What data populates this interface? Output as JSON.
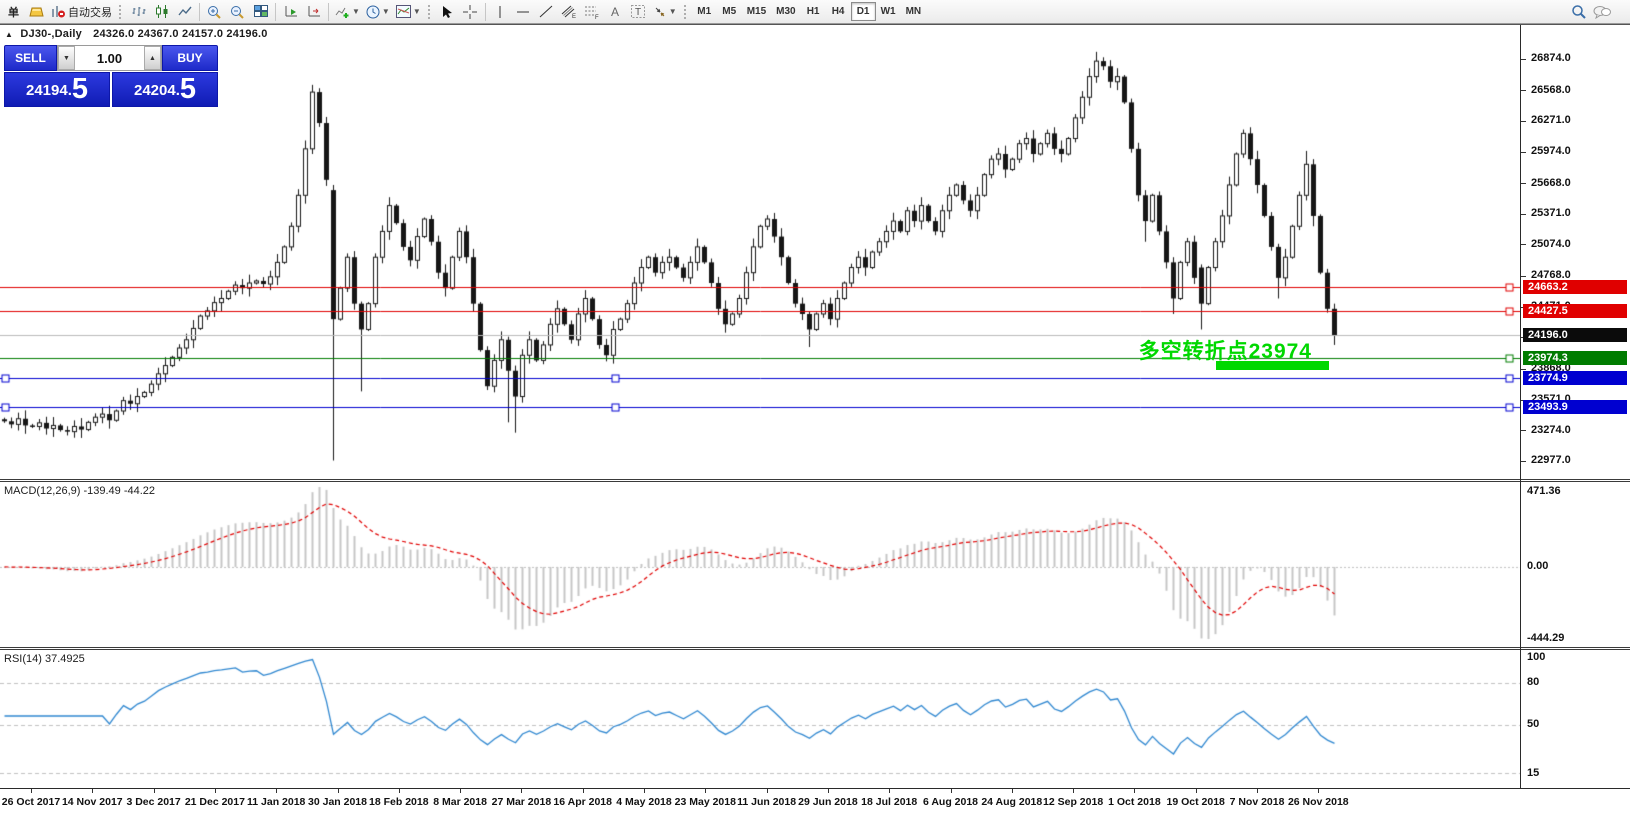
{
  "toolbar": {
    "order_label": "单",
    "autotrade_label": "自动交易",
    "timeframes": [
      "M1",
      "M5",
      "M15",
      "M30",
      "H1",
      "H4",
      "D1",
      "W1",
      "MN"
    ],
    "active_timeframe": "D1"
  },
  "chart": {
    "collapse_indicator": "▲",
    "title_symbol": "DJ30-,Daily",
    "title_ohlc": "24326.0 24367.0 24157.0 24196.0"
  },
  "trade_panel": {
    "sell_label": "SELL",
    "buy_label": "BUY",
    "volume": "1.00",
    "sell_price_main": "24194.",
    "sell_price_pip": "5",
    "buy_price_main": "24204.",
    "buy_price_pip": "5"
  },
  "annotation": {
    "text": "多空转折点23974",
    "color": "#00d800"
  },
  "panes": {
    "macd": {
      "label": "MACD(12,26,9) -139.49 -44.22",
      "axis_labels": [
        "471.36",
        "0.00",
        "-444.29"
      ]
    },
    "rsi": {
      "label": "RSI(14) 37.4925",
      "axis_labels": [
        "100",
        "80",
        "50",
        "15"
      ]
    }
  },
  "chart_data": {
    "type": "candlestick",
    "symbol": "DJ30-",
    "period": "Daily",
    "ohlc_current": {
      "open": 24326.0,
      "high": 24367.0,
      "low": 24157.0,
      "close": 24196.0
    },
    "y_axis": {
      "price_top": 27200,
      "price_bottom": 22801,
      "ticks": [
        26874,
        26568,
        26271,
        25974,
        25668,
        25371,
        25074,
        24768,
        24471,
        24174,
        23868,
        23571,
        23274,
        22977
      ]
    },
    "x_labels": [
      "26 Oct 2017",
      "14 Nov 2017",
      "3 Dec 2017",
      "21 Dec 2017",
      "11 Jan 2018",
      "30 Jan 2018",
      "18 Feb 2018",
      "8 Mar 2018",
      "27 Mar 2018",
      "16 Apr 2018",
      "4 May 2018",
      "23 May 2018",
      "11 Jun 2018",
      "29 Jun 2018",
      "18 Jul 2018",
      "6 Aug 2018",
      "24 Aug 2018",
      "12 Sep 2018",
      "1 Oct 2018",
      "19 Oct 2018",
      "7 Nov 2018",
      "26 Nov 2018"
    ],
    "first_open": 23380,
    "closes": [
      23360,
      23330,
      23385,
      23320,
      23310,
      23345,
      23290,
      23320,
      23275,
      23260,
      23310,
      23280,
      23350,
      23400,
      23430,
      23370,
      23460,
      23560,
      23530,
      23600,
      23640,
      23720,
      23820,
      23900,
      23980,
      24070,
      24150,
      24260,
      24380,
      24430,
      24510,
      24550,
      24620,
      24680,
      24650,
      24700,
      24720,
      24690,
      24760,
      24900,
      25050,
      25250,
      25550,
      26000,
      26550,
      26250,
      25700,
      24350,
      24650,
      24950,
      24500,
      24250,
      24500,
      24950,
      25200,
      25450,
      25280,
      25050,
      24920,
      25150,
      25320,
      25100,
      24800,
      24650,
      24950,
      25200,
      24950,
      24500,
      24050,
      23700,
      23950,
      24150,
      23850,
      23600,
      24000,
      24150,
      23950,
      24100,
      24300,
      24450,
      24300,
      24150,
      24400,
      24550,
      24350,
      24100,
      24000,
      24250,
      24350,
      24500,
      24700,
      24850,
      24950,
      24800,
      24900,
      24950,
      24850,
      24750,
      24900,
      25050,
      24900,
      24700,
      24450,
      24300,
      24400,
      24550,
      24800,
      25050,
      25250,
      25320,
      25150,
      24950,
      24700,
      24500,
      24400,
      24250,
      24400,
      24500,
      24350,
      24550,
      24700,
      24850,
      24950,
      24850,
      25000,
      25100,
      25200,
      25300,
      25200,
      25400,
      25300,
      25450,
      25300,
      25200,
      25400,
      25550,
      25650,
      25500,
      25400,
      25550,
      25750,
      25900,
      25950,
      25800,
      25900,
      26050,
      26100,
      25950,
      26050,
      26150,
      26000,
      25950,
      26100,
      26300,
      26500,
      26700,
      26850,
      26800,
      26650,
      26700,
      26450,
      26000,
      25550,
      25300,
      25550,
      25200,
      24900,
      24550,
      24900,
      25100,
      24750,
      24500,
      24850,
      25100,
      25350,
      25650,
      25950,
      26150,
      25900,
      25650,
      25350,
      25050,
      24750,
      24950,
      25250,
      25550,
      25850,
      25350,
      24800,
      24450,
      24196
    ],
    "candle_overrides": {
      "44": [
        26000,
        26620,
        25950,
        26550
      ],
      "47": [
        25600,
        25650,
        22980,
        24350
      ],
      "51": [
        24500,
        24520,
        23650,
        24250
      ],
      "72": [
        24150,
        24180,
        23350,
        23850
      ],
      "73": [
        23850,
        23900,
        23250,
        23600
      ],
      "115": [
        24400,
        24420,
        24080,
        24250
      ],
      "156": [
        26700,
        26940,
        26640,
        26850
      ],
      "163": [
        25550,
        25600,
        25100,
        25300
      ],
      "167": [
        24900,
        24950,
        24400,
        24550
      ],
      "171": [
        24850,
        24880,
        24250,
        24500
      ],
      "182": [
        25050,
        25080,
        24550,
        24750
      ],
      "186": [
        25550,
        25980,
        25500,
        25850
      ],
      "187": [
        25850,
        25900,
        25250,
        25350
      ],
      "190": [
        24450,
        24500,
        24100,
        24196
      ]
    },
    "hlines": [
      {
        "price": 24663.2,
        "label": "24663.2",
        "color": "#e00000"
      },
      {
        "price": 24427.5,
        "label": "24427.5",
        "color": "#e00000"
      },
      {
        "price": 23974.3,
        "label": "23974.3",
        "color": "#007c00"
      },
      {
        "price": 23774.9,
        "label": "23774.9",
        "color": "#0000d0",
        "handles": [
          2,
          612
        ]
      },
      {
        "price": 23493.9,
        "label": "23493.9",
        "color": "#0000d0",
        "handles": [
          2,
          612
        ]
      }
    ],
    "bid": {
      "price": 24196.0,
      "label": "24196.0",
      "line_color": "#b9b9b9",
      "badge_color": "#0b0b0b"
    },
    "indicators": {
      "macd": {
        "fast": 12,
        "slow": 26,
        "signal": 9,
        "value_main": -139.49,
        "value_signal": -44.22,
        "range": [
          471.36,
          -444.29
        ],
        "histogram_color": "#c6c6c6",
        "signal_color": "#e00000"
      },
      "rsi": {
        "period": 14,
        "value": 37.4925,
        "levels": [
          80,
          50,
          15
        ],
        "render_range": [
          4.5,
          103.5
        ],
        "color": "#2f87d0",
        "level_color": "#c0c0c0"
      }
    }
  }
}
